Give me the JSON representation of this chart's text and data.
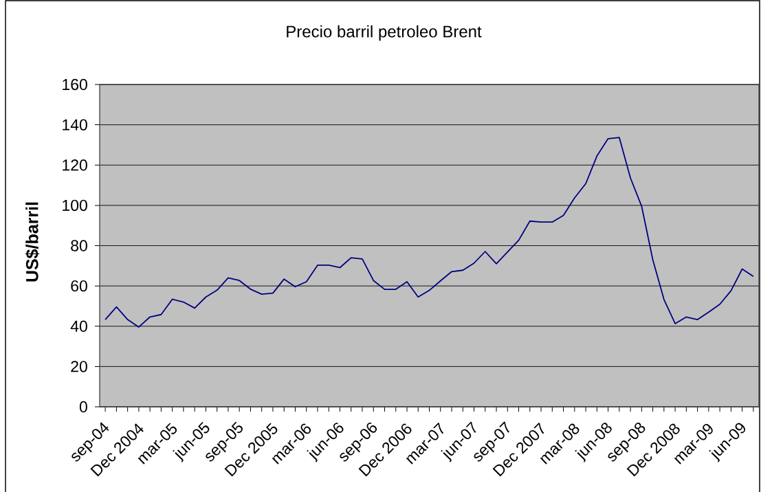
{
  "chart_data": {
    "type": "line",
    "title": "Precio barril petroleo Brent",
    "ylabel": "US$/barril",
    "categories": [
      "sep-04",
      null,
      null,
      "Dec 2004",
      null,
      null,
      "mar-05",
      null,
      null,
      "jun-05",
      null,
      null,
      "sep-05",
      null,
      null,
      "Dec 2005",
      null,
      null,
      "mar-06",
      null,
      null,
      "jun-06",
      null,
      null,
      "sep-06",
      null,
      null,
      "Dec 2006",
      null,
      null,
      "mar-07",
      null,
      null,
      "jun-07",
      null,
      null,
      "sep-07",
      null,
      null,
      "Dec 2007",
      null,
      null,
      "mar-08",
      null,
      null,
      "jun-08",
      null,
      null,
      "sep-08",
      null,
      null,
      "Dec 2008",
      null,
      null,
      "mar-09",
      null,
      null,
      "jun-09",
      null
    ],
    "series": [
      {
        "color": "#000080",
        "values": [
          43.3,
          49.6,
          43.3,
          39.6,
          44.6,
          45.8,
          53.4,
          52.0,
          49.0,
          54.5,
          57.9,
          64.0,
          62.7,
          58.4,
          55.9,
          56.4,
          63.4,
          59.6,
          62.1,
          70.3,
          70.3,
          69.1,
          74.0,
          73.4,
          62.7,
          58.3,
          58.3,
          62.1,
          54.5,
          57.8,
          62.5,
          67.1,
          67.8,
          71.3,
          77.1,
          71.0,
          76.9,
          82.7,
          92.2,
          91.7,
          91.7,
          95.0,
          103.7,
          110.8,
          124.5,
          133.1,
          133.7,
          113.6,
          99.6,
          73.0,
          53.3,
          41.3,
          44.6,
          43.3,
          47.0,
          50.9,
          57.6,
          68.4,
          64.7
        ]
      }
    ],
    "ylim": [
      0,
      160
    ],
    "yticks": [
      0,
      20,
      40,
      60,
      80,
      100,
      120,
      140,
      160
    ],
    "grid": "y",
    "marker": "none",
    "line_style": "solid"
  }
}
